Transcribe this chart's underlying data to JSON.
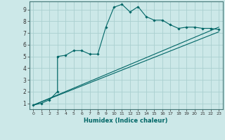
{
  "xlabel": "Humidex (Indice chaleur)",
  "background_color": "#cce8e8",
  "grid_color": "#aad0d0",
  "line_color": "#006666",
  "xlim": [
    -0.5,
    23.5
  ],
  "ylim": [
    0.5,
    9.7
  ],
  "xticks": [
    0,
    1,
    2,
    3,
    4,
    5,
    6,
    7,
    8,
    9,
    10,
    11,
    12,
    13,
    14,
    15,
    16,
    17,
    18,
    19,
    20,
    21,
    22,
    23
  ],
  "yticks": [
    1,
    2,
    3,
    4,
    5,
    6,
    7,
    8,
    9
  ],
  "main_x": [
    0,
    1,
    2,
    3,
    3,
    4,
    5,
    6,
    7,
    8,
    9,
    10,
    11,
    12,
    13,
    14,
    15,
    16,
    17,
    18,
    19,
    20,
    21,
    22,
    23
  ],
  "main_y": [
    0.85,
    1.0,
    1.3,
    2.0,
    5.0,
    5.1,
    5.5,
    5.5,
    5.2,
    5.2,
    7.5,
    9.2,
    9.45,
    8.8,
    9.25,
    8.4,
    8.1,
    8.1,
    7.7,
    7.4,
    7.5,
    7.5,
    7.4,
    7.4,
    7.3
  ],
  "line1_x": [
    0,
    23
  ],
  "line1_y": [
    0.85,
    7.1
  ],
  "line2_x": [
    0,
    23
  ],
  "line2_y": [
    0.85,
    7.5
  ]
}
